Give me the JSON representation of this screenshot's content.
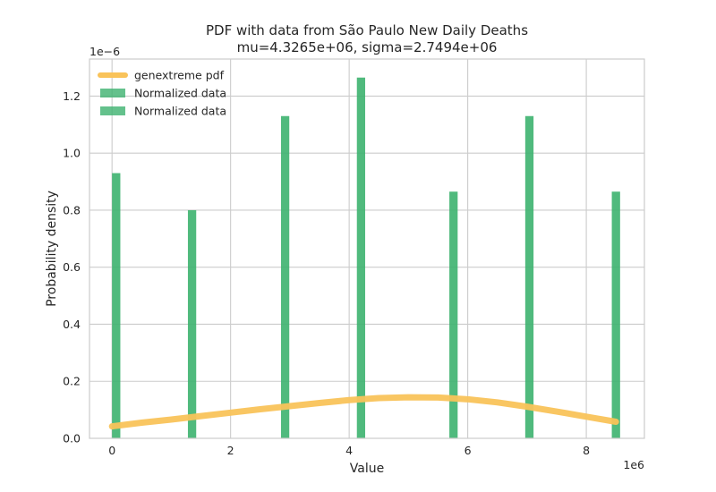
{
  "chart_data": {
    "type": "bar",
    "title_line1": "PDF with data from São Paulo New Daily Deaths",
    "title_line2": "mu=4.3265e+06, sigma=2.7494e+06",
    "xlabel": "Value",
    "ylabel": "Probability density",
    "x_offset_label": "1e6",
    "y_offset_label": "1e−6",
    "xlim": [
      -0.38,
      8.98
    ],
    "ylim": [
      0,
      1.33
    ],
    "x_ticks": [
      0,
      2,
      4,
      6,
      8
    ],
    "x_tick_labels": [
      "0",
      "2",
      "4",
      "6",
      "8"
    ],
    "y_ticks": [
      0.0,
      0.2,
      0.4,
      0.6,
      0.8,
      1.0,
      1.2
    ],
    "y_tick_labels": [
      "0.0",
      "0.2",
      "0.4",
      "0.6",
      "0.8",
      "1.0",
      "1.2"
    ],
    "grid": true,
    "legend_position": "top-left",
    "legend_entries": [
      {
        "label": "genextreme pdf",
        "kind": "line",
        "color": "#f9c35a"
      },
      {
        "label": "Normalized data",
        "kind": "bar",
        "color": "#3db26f"
      },
      {
        "label": "Normalized data",
        "kind": "bar",
        "color": "#3db26f"
      }
    ],
    "bars": {
      "name": "Normalized data",
      "color": "#3db26f",
      "width": 0.14,
      "x": [
        0.07,
        1.35,
        2.92,
        4.2,
        5.76,
        7.04,
        8.5
      ],
      "values": [
        0.93,
        0.8,
        1.13,
        1.265,
        0.865,
        1.13,
        0.865
      ]
    },
    "pdf_line": {
      "name": "genextreme pdf",
      "color": "#f9c35a",
      "x": [
        0.0,
        0.5,
        1.0,
        1.5,
        2.0,
        2.5,
        3.0,
        3.5,
        4.0,
        4.5,
        5.0,
        5.5,
        6.0,
        6.5,
        7.0,
        7.5,
        8.0,
        8.5
      ],
      "y": [
        0.042,
        0.055,
        0.066,
        0.078,
        0.09,
        0.102,
        0.113,
        0.124,
        0.134,
        0.141,
        0.144,
        0.143,
        0.137,
        0.126,
        0.111,
        0.094,
        0.076,
        0.058
      ]
    }
  }
}
